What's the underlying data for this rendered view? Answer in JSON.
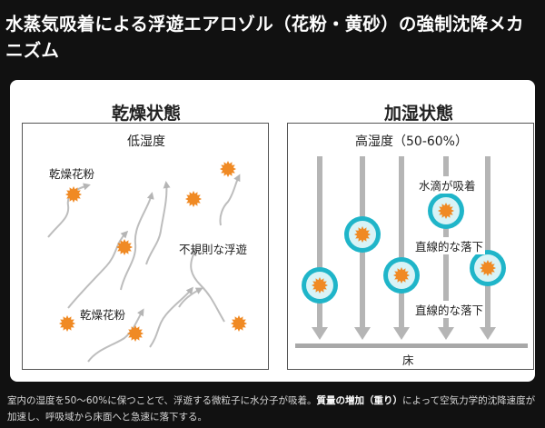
{
  "title": "水蒸気吸着による浮遊エアロゾル（花粉・黄砂）の強制沈降メカニズム",
  "dry": {
    "heading": "乾燥状態",
    "humidity": "低湿度",
    "label_pollen_top": "乾燥花粉",
    "label_pollen_bottom": "乾燥花粉",
    "label_irregular": "不規則な浮遊"
  },
  "humid": {
    "heading": "加湿状態",
    "humidity": "高湿度（50-60%）",
    "label_absorb": "水滴が吸着",
    "label_fall_1": "直線的な落下",
    "label_fall_2": "直線的な落下",
    "floor": "床"
  },
  "caption": {
    "part1": "室内の湿度を50〜60%に保つことで、浮遊する微粒子に水分子が吸着。",
    "bold": "質量の増加（重り）",
    "part2": "によって空気力学的沈降速度が加速し、呼吸域から床面へと急速に落下する。"
  },
  "colors": {
    "pollen": "#f08a24",
    "droplet": "#1fb5c9",
    "arrow": "#b5b5b5"
  }
}
